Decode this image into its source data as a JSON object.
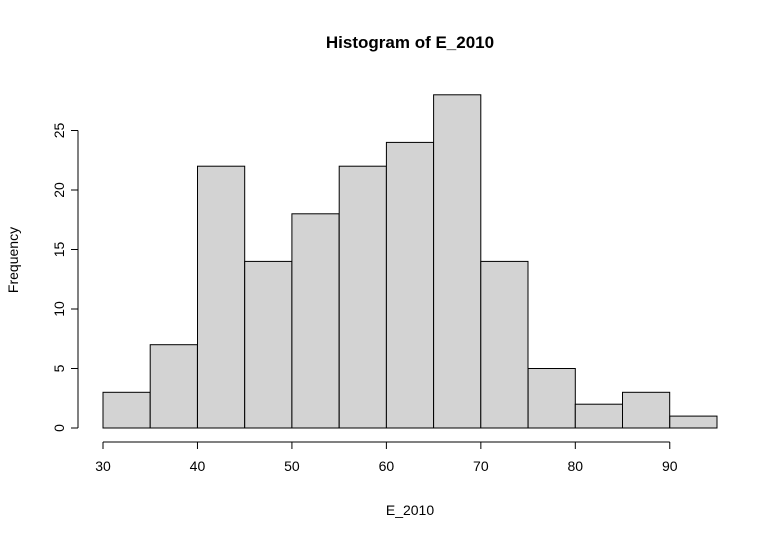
{
  "chart_data": {
    "type": "bar",
    "title": "Histogram of E_2010",
    "xlabel": "E_2010",
    "ylabel": "Frequency",
    "bins": [
      {
        "from": 30,
        "to": 35,
        "count": 3
      },
      {
        "from": 35,
        "to": 40,
        "count": 7
      },
      {
        "from": 40,
        "to": 45,
        "count": 22
      },
      {
        "from": 45,
        "to": 50,
        "count": 14
      },
      {
        "from": 50,
        "to": 55,
        "count": 18
      },
      {
        "from": 55,
        "to": 60,
        "count": 22
      },
      {
        "from": 60,
        "to": 65,
        "count": 24
      },
      {
        "from": 65,
        "to": 70,
        "count": 28
      },
      {
        "from": 70,
        "to": 75,
        "count": 14
      },
      {
        "from": 75,
        "to": 80,
        "count": 5
      },
      {
        "from": 80,
        "to": 85,
        "count": 2
      },
      {
        "from": 85,
        "to": 90,
        "count": 3
      },
      {
        "from": 90,
        "to": 95,
        "count": 1
      }
    ],
    "xlim": [
      30,
      95
    ],
    "ylim": [
      0,
      28
    ],
    "xticks": [
      "30",
      "40",
      "50",
      "60",
      "70",
      "80",
      "90"
    ],
    "yticks": [
      "0",
      "5",
      "10",
      "15",
      "20",
      "25"
    ],
    "grid": false,
    "bar_color": "#d3d3d3",
    "edge_color": "#000000"
  }
}
